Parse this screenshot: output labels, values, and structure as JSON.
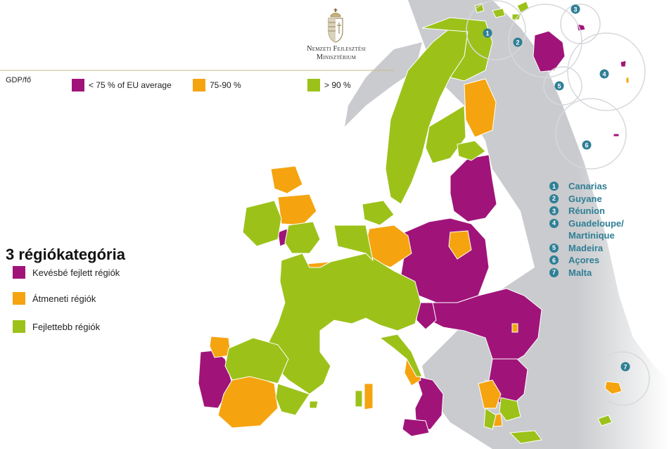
{
  "header": {
    "ministry_line1": "Nemzeti Fejlesztési",
    "ministry_line2": "Minisztérium"
  },
  "gdp_legend": {
    "label": "GDP/fő",
    "items": [
      {
        "label": "< 75 % of EU average",
        "color": "#a0147a"
      },
      {
        "label": "75-90 %",
        "color": "#f5a40f"
      },
      {
        "label": "> 90 %",
        "color": "#9cc21a"
      }
    ]
  },
  "categories": {
    "title": "3 régiókategória",
    "items": [
      {
        "label": "Kevésbé fejlett régiók",
        "color": "#a0147a"
      },
      {
        "label": "Átmeneti régiók",
        "color": "#f5a40f"
      },
      {
        "label": "Fejlettebb régiók",
        "color": "#9cc21a"
      }
    ]
  },
  "outermost_regions": [
    {
      "number": "1",
      "name": "Canarias"
    },
    {
      "number": "2",
      "name": "Guyane"
    },
    {
      "number": "3",
      "name": "Réunion"
    },
    {
      "number": "4",
      "name": "Guadeloupe/"
    },
    {
      "number": "",
      "name": "Martinique"
    },
    {
      "number": "5",
      "name": "Madeira"
    },
    {
      "number": "6",
      "name": "Açores"
    },
    {
      "number": "7",
      "name": "Malta"
    }
  ],
  "inset_numbers": [
    "1",
    "2",
    "3",
    "4",
    "5",
    "6",
    "7"
  ],
  "colors": {
    "less_developed": "#a0147a",
    "transition": "#f5a40f",
    "more_developed": "#9cc21a",
    "non_eu_land": "#c8cacd",
    "accent": "#2f7f95"
  }
}
